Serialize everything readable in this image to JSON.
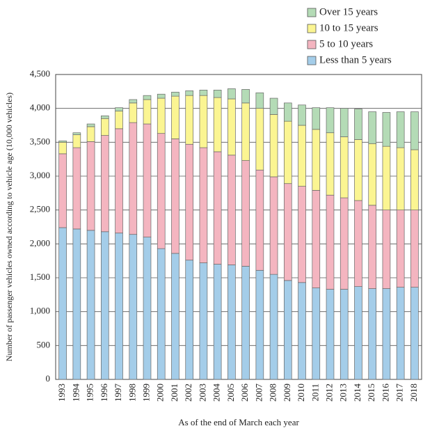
{
  "chart_data": {
    "type": "stacked-bar",
    "xlabel": "As of the end of March each year",
    "ylabel": "Number of passenger vehicles owned according to vehicle age (10,000 vehicles)",
    "categories": [
      "1993",
      "1994",
      "1995",
      "1996",
      "1997",
      "1998",
      "1999",
      "2000",
      "2001",
      "2002",
      "2003",
      "2004",
      "2005",
      "2006",
      "2007",
      "2008",
      "2009",
      "2010",
      "2011",
      "2012",
      "2013",
      "2014",
      "2015",
      "2016",
      "2017",
      "2018"
    ],
    "series": [
      {
        "name": "Less than 5 years",
        "color": "#a4cde9",
        "values": [
          2240,
          2220,
          2200,
          2180,
          2160,
          2140,
          2100,
          1930,
          1860,
          1760,
          1720,
          1700,
          1690,
          1670,
          1610,
          1550,
          1460,
          1430,
          1350,
          1330,
          1330,
          1370,
          1340,
          1340,
          1360,
          1360
        ]
      },
      {
        "name": "5 to 10 years",
        "color": "#f4b5c0",
        "values": [
          1090,
          1200,
          1310,
          1420,
          1540,
          1650,
          1670,
          1700,
          1690,
          1710,
          1700,
          1660,
          1620,
          1560,
          1480,
          1440,
          1430,
          1420,
          1440,
          1390,
          1350,
          1270,
          1230,
          1160,
          1140,
          1140
        ]
      },
      {
        "name": "10 to 15 years",
        "color": "#fbf592",
        "values": [
          170,
          190,
          220,
          250,
          260,
          290,
          360,
          520,
          630,
          720,
          770,
          800,
          830,
          850,
          910,
          920,
          920,
          900,
          900,
          920,
          900,
          900,
          910,
          940,
          920,
          890
        ]
      },
      {
        "name": "Over 15 years",
        "color": "#b4dbb6",
        "values": [
          20,
          30,
          40,
          40,
          50,
          50,
          60,
          60,
          60,
          70,
          80,
          110,
          150,
          200,
          230,
          240,
          270,
          300,
          320,
          370,
          420,
          450,
          470,
          500,
          530,
          560
        ]
      }
    ],
    "ylim": [
      0,
      4500
    ],
    "yticks": [
      0,
      500,
      {
        "value": 1000,
        "label": "1,000"
      },
      {
        "value": 1500,
        "label": "1,500"
      },
      {
        "value": 2000,
        "label": "2,000"
      },
      {
        "value": 2500,
        "label": "2,500"
      },
      {
        "value": 3000,
        "label": "3,000"
      },
      {
        "value": 3500,
        "label": "3,500"
      },
      {
        "value": 4000,
        "label": "4,000"
      },
      {
        "value": 4500,
        "label": "4,500"
      }
    ],
    "grid": true,
    "legend": "top-right"
  }
}
